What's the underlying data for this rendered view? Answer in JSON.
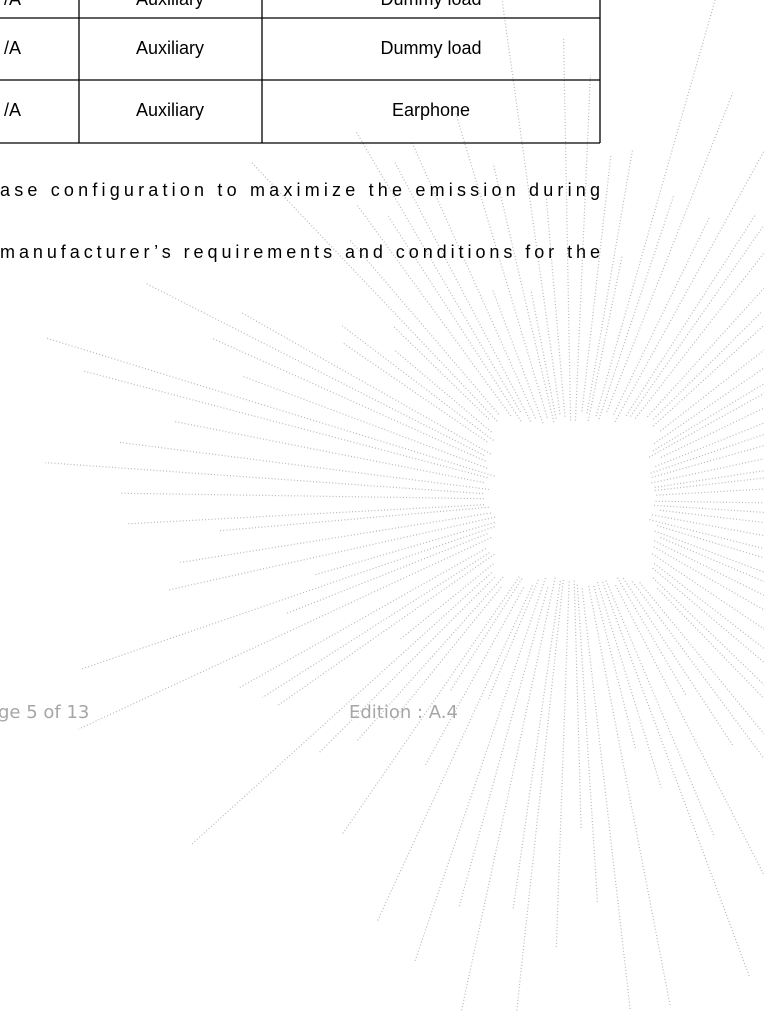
{
  "table": {
    "rows": [
      [
        "/A",
        "Auxiliary",
        "Dummy load"
      ],
      [
        "/A",
        "Auxiliary",
        "Dummy load"
      ],
      [
        "/A",
        "Auxiliary",
        "Earphone"
      ]
    ]
  },
  "paragraph": {
    "lines": [
      "ase configuration to maximize the emission during",
      "manufacturer’s requirements and conditions for the"
    ]
  },
  "footer": {
    "page": "ge 5 of 13",
    "edition": "Edition : A.4"
  }
}
